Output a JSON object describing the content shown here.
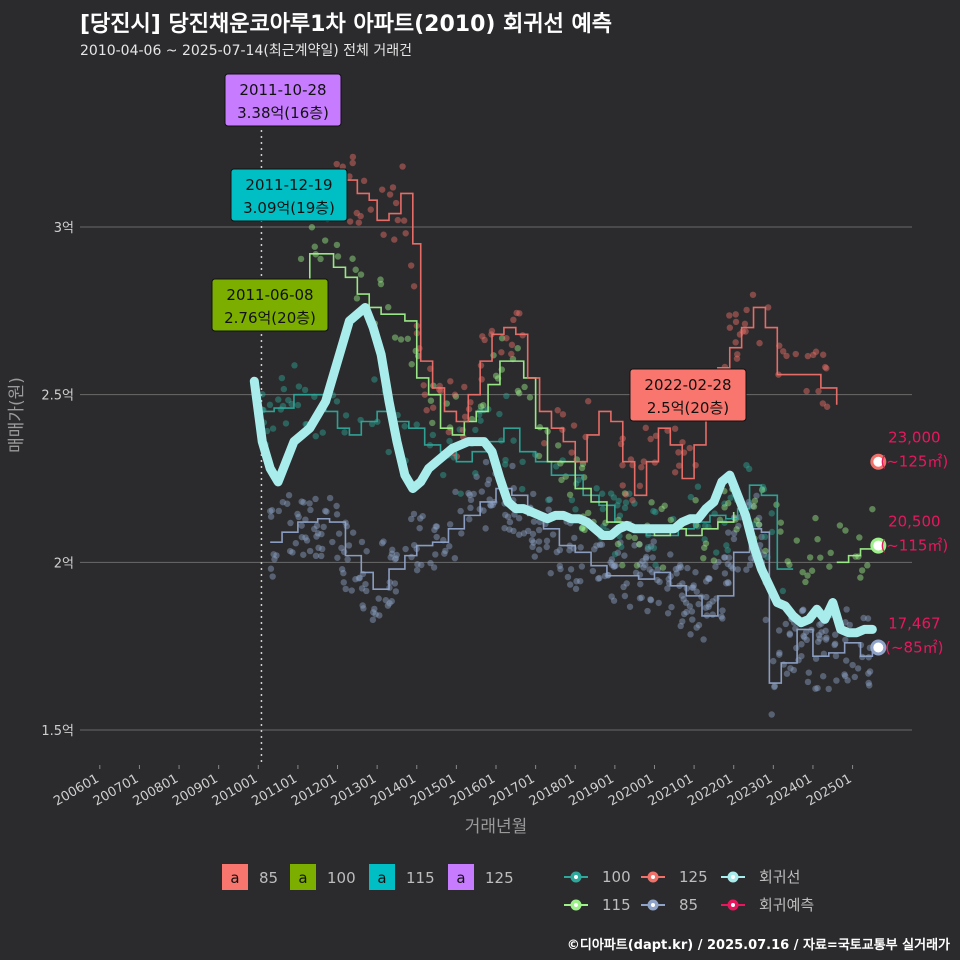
{
  "header": {
    "title": "[당진시] 당진채운코아루1차 아파트(2010) 회귀선 예측",
    "subtitle": "2010-04-06 ~ 2025-07-14(최근계약일) 전체 거래건"
  },
  "caption": "©디아파트(dapt.kr) / 2025.07.16 / 자료=국토교통부 실거래가",
  "colors": {
    "background": "#2b2b2d",
    "grid": "#6a6a6a",
    "s85": "#f8766d",
    "s100": "#7cae00",
    "s115": "#00bfc4",
    "s125": "#c77cff",
    "trend100": "#2ea89a",
    "trend115": "#9ef08a",
    "trend125": "#f0706a",
    "trend85": "#8fa3c8",
    "regression": "#a8ecec",
    "forecast": "#e8175d"
  },
  "chart_data": {
    "type": "scatter",
    "xlabel": "거래년월",
    "ylabel": "매매가(원)",
    "ylim": [
      1.4,
      3.45
    ],
    "xlim": [
      2005.5,
      2026.5
    ],
    "y_ticks": [
      {
        "value": 1.5,
        "label": "1.5억"
      },
      {
        "value": 2.0,
        "label": "2억"
      },
      {
        "value": 2.5,
        "label": "2.5억"
      },
      {
        "value": 3.0,
        "label": "3억"
      }
    ],
    "x_ticks": [
      "200601",
      "200701",
      "200801",
      "200901",
      "201001",
      "201101",
      "201201",
      "201301",
      "201401",
      "201501",
      "201601",
      "201701",
      "201801",
      "201901",
      "202001",
      "202101",
      "202201",
      "202301",
      "202401",
      "202501"
    ],
    "x_tick_values": [
      2006,
      2007,
      2008,
      2009,
      2010,
      2011,
      2012,
      2013,
      2014,
      2015,
      2016,
      2017,
      2018,
      2019,
      2020,
      2021,
      2022,
      2023,
      2024,
      2025
    ],
    "reference_date": 2010.08,
    "series": [
      {
        "name": "85",
        "type": "trend",
        "color_key": "trend85",
        "x": [
          2010.3,
          2010.6,
          2011.0,
          2011.5,
          2011.8,
          2012.2,
          2012.6,
          2012.9,
          2013.3,
          2013.7,
          2014.0,
          2014.4,
          2014.8,
          2015.2,
          2015.6,
          2016.0,
          2016.4,
          2016.8,
          2017.2,
          2017.6,
          2018.0,
          2018.4,
          2018.8,
          2019.2,
          2019.6,
          2020.0,
          2020.4,
          2020.8,
          2021.2,
          2021.6,
          2022.0,
          2022.4,
          2022.7,
          2022.9,
          2023.2,
          2023.6,
          2024.0,
          2024.4,
          2024.8,
          2025.2,
          2025.5
        ],
        "y": [
          2.06,
          2.09,
          2.12,
          2.13,
          2.12,
          2.02,
          1.97,
          1.92,
          1.98,
          2.02,
          2.05,
          2.06,
          2.1,
          2.14,
          2.18,
          2.22,
          2.2,
          2.14,
          2.1,
          2.05,
          2.03,
          1.99,
          1.96,
          1.96,
          1.95,
          1.97,
          1.93,
          1.9,
          1.84,
          1.9,
          2.03,
          2.1,
          2.09,
          1.64,
          1.7,
          1.8,
          1.72,
          1.73,
          1.76,
          1.72,
          1.74
        ]
      },
      {
        "name": "100",
        "type": "trend",
        "color_key": "trend100",
        "x": [
          2010.1,
          2010.4,
          2010.9,
          2011.3,
          2011.7,
          2012.0,
          2012.3,
          2012.6,
          2013.0,
          2013.4,
          2013.8,
          2014.2,
          2014.6,
          2015.0,
          2015.4,
          2015.8,
          2016.2,
          2016.6,
          2017.0,
          2017.4,
          2017.8,
          2018.2,
          2018.6,
          2019.0,
          2019.4,
          2019.8,
          2020.2,
          2020.6,
          2021.0,
          2021.4,
          2021.8,
          2022.1,
          2022.4,
          2022.7,
          2023.1,
          2023.5
        ],
        "y": [
          2.45,
          2.46,
          2.5,
          2.5,
          2.45,
          2.4,
          2.38,
          2.42,
          2.45,
          2.42,
          2.4,
          2.35,
          2.33,
          2.3,
          2.33,
          2.36,
          2.4,
          2.33,
          2.3,
          2.26,
          2.26,
          2.2,
          2.17,
          2.12,
          2.1,
          2.08,
          2.08,
          2.1,
          2.12,
          2.14,
          2.13,
          2.16,
          2.23,
          2.2,
          1.98,
          1.98
        ]
      },
      {
        "name": "115",
        "type": "trend",
        "color_key": "trend115",
        "x": [
          2011.0,
          2011.3,
          2011.6,
          2011.9,
          2012.2,
          2012.5,
          2012.8,
          2013.1,
          2013.4,
          2013.7,
          2014.0,
          2014.3,
          2014.6,
          2014.9,
          2015.2,
          2015.5,
          2015.8,
          2016.1,
          2016.4,
          2016.7,
          2017.0,
          2017.3,
          2017.6,
          2018.0,
          2018.4,
          2018.8,
          2019.2,
          2019.6,
          2020.0,
          2020.4,
          2020.8,
          2021.2,
          2021.6,
          2022.0,
          2024.6,
          2024.9,
          2025.2,
          2025.5
        ],
        "y": [
          2.76,
          2.92,
          2.92,
          2.88,
          2.85,
          2.8,
          2.76,
          2.74,
          2.74,
          2.72,
          2.55,
          2.5,
          2.4,
          2.38,
          2.42,
          2.45,
          2.53,
          2.6,
          2.6,
          2.55,
          2.4,
          2.3,
          2.3,
          2.22,
          2.18,
          2.12,
          2.1,
          2.1,
          2.08,
          2.1,
          2.08,
          2.1,
          2.12,
          2.15,
          2.0,
          2.02,
          2.04,
          2.05
        ]
      },
      {
        "name": "125",
        "type": "trend",
        "color_key": "trend125",
        "x": [
          2011.3,
          2011.6,
          2011.9,
          2012.2,
          2012.5,
          2012.8,
          2013.0,
          2013.3,
          2013.6,
          2013.9,
          2014.1,
          2014.4,
          2014.7,
          2015.0,
          2015.3,
          2015.6,
          2015.9,
          2016.2,
          2016.5,
          2016.8,
          2017.1,
          2017.4,
          2017.7,
          2018.0,
          2018.3,
          2018.6,
          2018.9,
          2019.2,
          2019.5,
          2019.8,
          2020.1,
          2020.4,
          2020.7,
          2021.0,
          2021.3,
          2021.6,
          2021.9,
          2022.2,
          2022.5,
          2022.8,
          2023.1,
          2023.5,
          2024.2,
          2024.6
        ],
        "y": [
          3.05,
          3.1,
          3.12,
          3.14,
          3.1,
          3.08,
          3.02,
          3.04,
          3.1,
          2.95,
          2.6,
          2.52,
          2.45,
          2.42,
          2.5,
          2.6,
          2.68,
          2.7,
          2.68,
          2.55,
          2.45,
          2.4,
          2.36,
          2.3,
          2.38,
          2.45,
          2.42,
          2.3,
          2.2,
          2.3,
          2.4,
          2.35,
          2.25,
          2.35,
          2.5,
          2.58,
          2.64,
          2.7,
          2.76,
          2.7,
          2.56,
          2.56,
          2.52,
          2.47
        ]
      },
      {
        "name": "회귀선",
        "type": "regression",
        "color_key": "regression",
        "x": [
          2009.9,
          2010.1,
          2010.3,
          2010.5,
          2010.7,
          2010.9,
          2011.1,
          2011.3,
          2011.5,
          2011.7,
          2011.9,
          2012.1,
          2012.3,
          2012.5,
          2012.7,
          2012.9,
          2013.1,
          2013.3,
          2013.5,
          2013.7,
          2013.9,
          2014.1,
          2014.3,
          2014.5,
          2014.7,
          2014.9,
          2015.1,
          2015.3,
          2015.5,
          2015.7,
          2015.9,
          2016.1,
          2016.3,
          2016.5,
          2016.7,
          2016.9,
          2017.1,
          2017.3,
          2017.5,
          2017.7,
          2017.9,
          2018.1,
          2018.3,
          2018.5,
          2018.7,
          2018.9,
          2019.1,
          2019.3,
          2019.5,
          2019.7,
          2019.9,
          2020.1,
          2020.3,
          2020.5,
          2020.7,
          2020.9,
          2021.1,
          2021.3,
          2021.5,
          2021.7,
          2021.9,
          2022.1,
          2022.3,
          2022.5,
          2022.7,
          2022.9,
          2023.1,
          2023.3,
          2023.5,
          2023.7,
          2023.9,
          2024.1,
          2024.3,
          2024.5,
          2024.7,
          2024.9,
          2025.1,
          2025.3,
          2025.5
        ],
        "y": [
          2.54,
          2.36,
          2.28,
          2.24,
          2.3,
          2.36,
          2.38,
          2.4,
          2.44,
          2.48,
          2.56,
          2.64,
          2.72,
          2.74,
          2.76,
          2.7,
          2.62,
          2.48,
          2.36,
          2.26,
          2.22,
          2.24,
          2.28,
          2.3,
          2.32,
          2.34,
          2.35,
          2.36,
          2.36,
          2.36,
          2.33,
          2.25,
          2.18,
          2.16,
          2.16,
          2.15,
          2.14,
          2.13,
          2.14,
          2.14,
          2.13,
          2.13,
          2.12,
          2.1,
          2.08,
          2.08,
          2.1,
          2.11,
          2.1,
          2.1,
          2.1,
          2.1,
          2.1,
          2.1,
          2.12,
          2.13,
          2.13,
          2.16,
          2.18,
          2.24,
          2.26,
          2.2,
          2.14,
          2.05,
          1.98,
          1.93,
          1.88,
          1.87,
          1.84,
          1.82,
          1.83,
          1.86,
          1.83,
          1.88,
          1.8,
          1.79,
          1.79,
          1.8,
          1.8
        ]
      },
      {
        "name": "회귀예측",
        "type": "forecast",
        "color_key": "forecast",
        "points": [
          {
            "x": 2025.65,
            "y": 2.3,
            "size": "125",
            "value_label": "23,000",
            "area_label": "(~125㎡)"
          },
          {
            "x": 2025.65,
            "y": 2.05,
            "size": "115",
            "value_label": "20,500",
            "area_label": "(~115㎡)"
          },
          {
            "x": 2025.65,
            "y": 1.746,
            "size": "85",
            "value_label": "17,467",
            "area_label": "(~85㎡)"
          }
        ]
      }
    ],
    "annotations": [
      {
        "date": "2011-10-28",
        "price": "3.38억(16층)",
        "x": 2011.82,
        "y": 3.38,
        "size": "125"
      },
      {
        "date": "2011-12-19",
        "price": "3.09억(19층)",
        "x": 2011.96,
        "y": 3.09,
        "size": "115"
      },
      {
        "date": "2011-06-08",
        "price": "2.76억(20층)",
        "x": 2011.44,
        "y": 2.76,
        "size": "100"
      },
      {
        "date": "2022-02-28",
        "price": "2.5억(20층)",
        "x": 2022.16,
        "y": 2.5,
        "size": "85"
      }
    ],
    "legend": {
      "label_boxes": [
        {
          "letter": "a",
          "name": "85",
          "color_key": "s85"
        },
        {
          "letter": "a",
          "name": "100",
          "color_key": "s100"
        },
        {
          "letter": "a",
          "name": "115",
          "color_key": "s115"
        },
        {
          "letter": "a",
          "name": "125",
          "color_key": "s125"
        }
      ],
      "lines": [
        {
          "name": "100",
          "color_key": "trend100"
        },
        {
          "name": "125",
          "color_key": "trend125"
        },
        {
          "name": "회귀선",
          "color_key": "regression"
        },
        {
          "name": "115",
          "color_key": "trend115"
        },
        {
          "name": "85",
          "color_key": "trend85"
        },
        {
          "name": "회귀예측",
          "color_key": "forecast"
        }
      ]
    }
  }
}
